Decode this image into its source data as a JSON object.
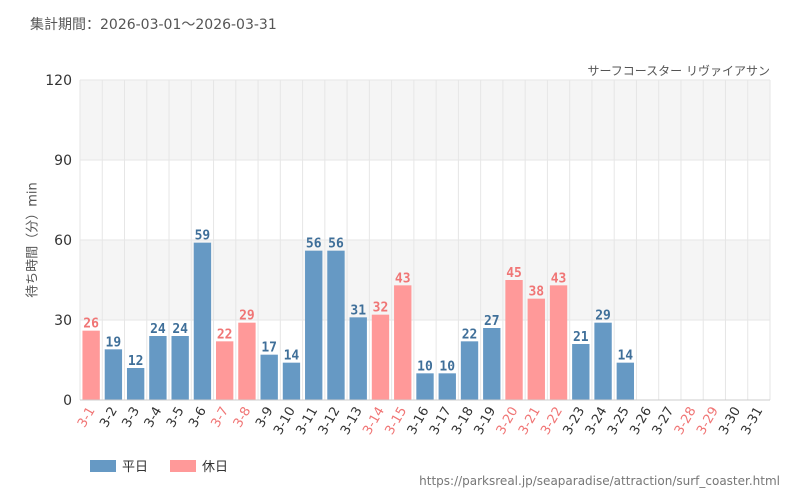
{
  "header": {
    "period_label": "集計期間：",
    "period_start": "2026-03-01",
    "period_sep": "〜",
    "period_end": "2026-03-31"
  },
  "legend": {
    "weekday_label": "平日",
    "holiday_label": "休日"
  },
  "footer": {
    "url": "https://parksreal.jp/seaparadise/attraction/surf_coaster.html"
  },
  "colors": {
    "weekday": "#6699c4",
    "holiday": "#ff9999",
    "weekday_text": "#3f6f99",
    "holiday_text": "#f07575",
    "band": "#f5f5f5",
    "grid": "#e6e6e6",
    "axis_text": "#333333"
  },
  "chart_data": {
    "type": "bar",
    "title": "サーフコースター リヴァイアサン",
    "xlabel": "",
    "ylabel": "待ち時間（分）min",
    "ylim": [
      0,
      120
    ],
    "yticks": [
      0,
      30,
      60,
      90,
      120
    ],
    "grid": true,
    "legend_position": "bottom-left",
    "categories": [
      "3-1",
      "3-2",
      "3-3",
      "3-4",
      "3-5",
      "3-6",
      "3-7",
      "3-8",
      "3-9",
      "3-10",
      "3-11",
      "3-12",
      "3-13",
      "3-14",
      "3-15",
      "3-16",
      "3-17",
      "3-18",
      "3-19",
      "3-20",
      "3-21",
      "3-22",
      "3-23",
      "3-24",
      "3-25",
      "3-26",
      "3-27",
      "3-28",
      "3-29",
      "3-30",
      "3-31"
    ],
    "values": [
      26,
      19,
      12,
      24,
      24,
      59,
      22,
      29,
      17,
      14,
      56,
      56,
      31,
      32,
      43,
      10,
      10,
      22,
      27,
      45,
      38,
      43,
      21,
      29,
      14,
      null,
      null,
      null,
      null,
      null,
      null
    ],
    "day_types": [
      "holiday",
      "weekday",
      "weekday",
      "weekday",
      "weekday",
      "weekday",
      "holiday",
      "holiday",
      "weekday",
      "weekday",
      "weekday",
      "weekday",
      "weekday",
      "holiday",
      "holiday",
      "weekday",
      "weekday",
      "weekday",
      "weekday",
      "holiday",
      "holiday",
      "holiday",
      "weekday",
      "weekday",
      "weekday",
      "weekday",
      "weekday",
      "holiday",
      "holiday",
      "weekday",
      "weekday"
    ],
    "series": [
      {
        "name": "平日",
        "key": "weekday"
      },
      {
        "name": "休日",
        "key": "holiday"
      }
    ]
  }
}
